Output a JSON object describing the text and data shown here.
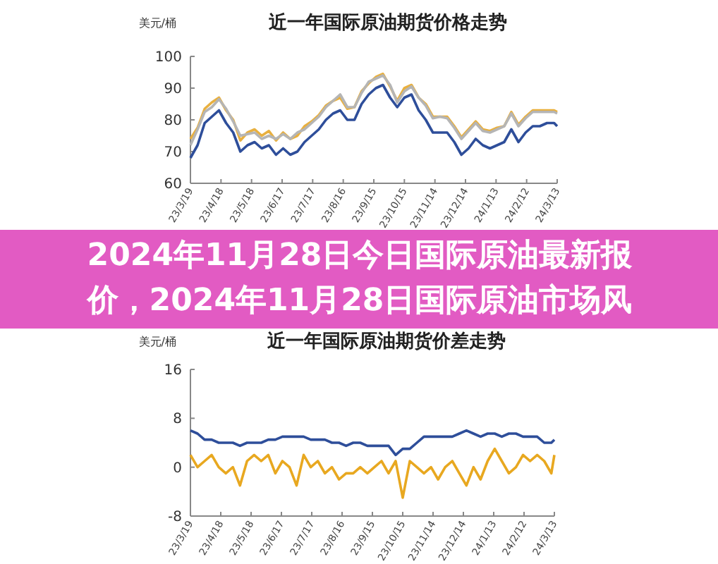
{
  "chart_data": [
    {
      "type": "line",
      "title": "近一年国际原油期货价格走势",
      "ylabel": "美元/桶",
      "ylim": [
        60,
        100
      ],
      "yticks": [
        60,
        70,
        80,
        90,
        100
      ],
      "xlim": [
        "2023-03-19",
        "2024-03-13"
      ],
      "xticks": [
        {
          "value": "2023-03-19",
          "label": "23/3/19"
        },
        {
          "value": "2023-04-18",
          "label": "23/4/18"
        },
        {
          "value": "2023-05-18",
          "label": "23/5/18"
        },
        {
          "value": "2023-06-17",
          "label": "23/6/17"
        },
        {
          "value": "2023-07-17",
          "label": "23/7/17"
        },
        {
          "value": "2023-08-16",
          "label": "23/8/16"
        },
        {
          "value": "2023-09-15",
          "label": "23/9/15"
        },
        {
          "value": "2023-10-15",
          "label": "23/10/15"
        },
        {
          "value": "2023-11-14",
          "label": "23/11/14"
        },
        {
          "value": "2023-12-14",
          "label": "23/12/14"
        },
        {
          "value": "2024-01-13",
          "label": "24/1/13"
        },
        {
          "value": "2024-02-12",
          "label": "24/2/12"
        },
        {
          "value": "2024-03-13",
          "label": "24/3/13"
        }
      ],
      "x": [
        "2023-03-19",
        "2023-03-26",
        "2023-04-02",
        "2023-04-09",
        "2023-04-16",
        "2023-04-23",
        "2023-04-30",
        "2023-05-07",
        "2023-05-14",
        "2023-05-21",
        "2023-05-28",
        "2023-06-04",
        "2023-06-11",
        "2023-06-18",
        "2023-06-25",
        "2023-07-02",
        "2023-07-09",
        "2023-07-16",
        "2023-07-23",
        "2023-07-30",
        "2023-08-06",
        "2023-08-13",
        "2023-08-20",
        "2023-08-27",
        "2023-09-03",
        "2023-09-10",
        "2023-09-17",
        "2023-09-24",
        "2023-10-01",
        "2023-10-08",
        "2023-10-15",
        "2023-10-22",
        "2023-10-29",
        "2023-11-05",
        "2023-11-12",
        "2023-11-19",
        "2023-11-26",
        "2023-12-03",
        "2023-12-10",
        "2023-12-17",
        "2023-12-24",
        "2023-12-31",
        "2024-01-07",
        "2024-01-14",
        "2024-01-21",
        "2024-01-28",
        "2024-02-04",
        "2024-02-11",
        "2024-02-18",
        "2024-02-25",
        "2024-03-03",
        "2024-03-10",
        "2024-03-13"
      ],
      "series": [
        {
          "color": "#e8b040",
          "values": [
            74,
            77.5,
            83.5,
            85.5,
            87,
            83,
            80,
            73.5,
            76,
            77,
            75,
            76.5,
            73.5,
            76,
            74,
            75,
            78,
            79.5,
            81.5,
            84.5,
            86,
            87,
            83.5,
            84,
            89,
            91.5,
            93.5,
            94.5,
            90.5,
            86,
            90,
            91,
            87,
            85,
            81,
            81,
            81,
            78,
            74.5,
            77,
            79.5,
            77,
            76.5,
            77.5,
            78,
            82.5,
            78.5,
            81,
            83,
            83,
            83,
            83,
            82.5
          ]
        },
        {
          "color": "#b5b5b5",
          "values": [
            72,
            77,
            82.5,
            84,
            86.5,
            83.5,
            79.5,
            75,
            75.5,
            76,
            74,
            75,
            74,
            75.5,
            74,
            76,
            77,
            79,
            81,
            84,
            86,
            88,
            84,
            84,
            88.5,
            92,
            93,
            94,
            91,
            85.5,
            89,
            90.5,
            87,
            84.5,
            80.5,
            81,
            80.5,
            77.5,
            74,
            76.5,
            79,
            76.5,
            76,
            77,
            78,
            82,
            78,
            80.5,
            82.5,
            82.5,
            82.5,
            82.5,
            82
          ]
        },
        {
          "color": "#2e4e9a",
          "values": [
            68,
            72,
            79,
            81,
            83,
            79,
            76,
            70,
            72,
            73,
            71,
            72,
            69,
            71,
            69,
            70,
            73,
            75,
            77,
            80,
            82,
            83,
            80,
            80,
            85,
            88,
            90,
            91,
            87,
            84,
            87,
            88,
            83,
            80,
            76,
            76,
            76,
            73,
            69,
            71,
            74,
            72,
            71,
            72,
            73,
            77,
            73,
            76,
            78,
            78,
            79,
            79,
            78
          ]
        }
      ]
    },
    {
      "type": "line",
      "title": "近一年国际原油期货价差走势",
      "ylabel": "美元/桶",
      "ylim": [
        -8,
        16
      ],
      "yticks": [
        -8,
        0,
        8,
        16
      ],
      "xlim": [
        "2023-03-19",
        "2024-03-13"
      ],
      "xticks": [
        {
          "value": "2023-03-19",
          "label": "23/3/19"
        },
        {
          "value": "2023-04-18",
          "label": "23/4/18"
        },
        {
          "value": "2023-05-18",
          "label": "23/5/18"
        },
        {
          "value": "2023-06-17",
          "label": "23/6/17"
        },
        {
          "value": "2023-07-17",
          "label": "23/7/17"
        },
        {
          "value": "2023-08-16",
          "label": "23/8/16"
        },
        {
          "value": "2023-09-15",
          "label": "23/9/15"
        },
        {
          "value": "2023-10-15",
          "label": "23/10/15"
        },
        {
          "value": "2023-11-14",
          "label": "23/11/14"
        },
        {
          "value": "2023-12-14",
          "label": "23/12/14"
        },
        {
          "value": "2024-01-13",
          "label": "24/1/13"
        },
        {
          "value": "2024-02-12",
          "label": "24/2/12"
        },
        {
          "value": "2024-03-13",
          "label": "24/3/13"
        }
      ],
      "x": [
        "2023-03-19",
        "2023-03-26",
        "2023-04-02",
        "2023-04-09",
        "2023-04-16",
        "2023-04-23",
        "2023-04-30",
        "2023-05-07",
        "2023-05-14",
        "2023-05-21",
        "2023-05-28",
        "2023-06-04",
        "2023-06-11",
        "2023-06-18",
        "2023-06-25",
        "2023-07-02",
        "2023-07-09",
        "2023-07-16",
        "2023-07-23",
        "2023-07-30",
        "2023-08-06",
        "2023-08-13",
        "2023-08-20",
        "2023-08-27",
        "2023-09-03",
        "2023-09-10",
        "2023-09-17",
        "2023-09-24",
        "2023-10-01",
        "2023-10-08",
        "2023-10-15",
        "2023-10-22",
        "2023-10-29",
        "2023-11-05",
        "2023-11-12",
        "2023-11-19",
        "2023-11-26",
        "2023-12-03",
        "2023-12-10",
        "2023-12-17",
        "2023-12-24",
        "2023-12-31",
        "2024-01-07",
        "2024-01-14",
        "2024-01-21",
        "2024-01-28",
        "2024-02-04",
        "2024-02-11",
        "2024-02-18",
        "2024-02-25",
        "2024-03-03",
        "2024-03-10",
        "2024-03-13"
      ],
      "series": [
        {
          "color": "#2e4e9a",
          "values": [
            6,
            5.5,
            4.5,
            4.5,
            4,
            4,
            4,
            3.5,
            4,
            4,
            4,
            4.5,
            4.5,
            5,
            5,
            5,
            5,
            4.5,
            4.5,
            4.5,
            4,
            4,
            3.5,
            4,
            4,
            3.5,
            3.5,
            3.5,
            3.5,
            2,
            3,
            3,
            4,
            5,
            5,
            5,
            5,
            5,
            5.5,
            6,
            5.5,
            5,
            5.5,
            5.5,
            5,
            5.5,
            5.5,
            5,
            5,
            5,
            4,
            4,
            4.5
          ]
        },
        {
          "color": "#e8a820",
          "values": [
            2,
            0,
            1,
            2,
            0,
            -1,
            0,
            -3,
            1,
            2,
            1,
            2,
            -1,
            1,
            0,
            -3,
            2,
            0,
            1,
            -1,
            0,
            -2,
            -1,
            -1,
            0,
            -1,
            0,
            1,
            -1,
            1,
            -5,
            1,
            0,
            -1,
            0,
            -2,
            0,
            1,
            -1,
            -3,
            0,
            -2,
            1,
            3,
            1,
            -1,
            0,
            2,
            1,
            2,
            1,
            -1,
            2
          ]
        }
      ]
    },
    {
      "type": "other",
      "title": "2024年11月28日今日国际原油最新报价，2024年11月28日国际原油市场风"
    }
  ]
}
